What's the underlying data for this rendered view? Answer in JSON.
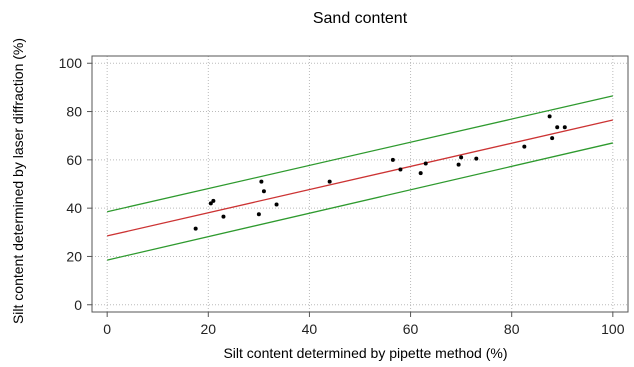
{
  "chart_data": {
    "type": "scatter",
    "title": "Sand content",
    "xlabel": "Silt content determined by pipette method (%)",
    "ylabel": "Silt content determined by laser diffraction (%)",
    "xlim": [
      -3,
      103
    ],
    "ylim": [
      -3,
      103
    ],
    "x_ticks": [
      0,
      20,
      40,
      60,
      80,
      100
    ],
    "y_ticks": [
      0,
      20,
      40,
      60,
      80,
      100
    ],
    "grid": true,
    "points": [
      {
        "x": 17.5,
        "y": 31.5
      },
      {
        "x": 20.5,
        "y": 42.0
      },
      {
        "x": 21.0,
        "y": 43.0
      },
      {
        "x": 23.0,
        "y": 36.5
      },
      {
        "x": 30.0,
        "y": 37.5
      },
      {
        "x": 30.5,
        "y": 51.0
      },
      {
        "x": 31.0,
        "y": 47.0
      },
      {
        "x": 33.5,
        "y": 41.5
      },
      {
        "x": 44.0,
        "y": 51.0
      },
      {
        "x": 56.5,
        "y": 60.0
      },
      {
        "x": 58.0,
        "y": 56.0
      },
      {
        "x": 62.0,
        "y": 54.5
      },
      {
        "x": 63.0,
        "y": 58.5
      },
      {
        "x": 69.5,
        "y": 58.0
      },
      {
        "x": 70.0,
        "y": 61.0
      },
      {
        "x": 73.0,
        "y": 60.5
      },
      {
        "x": 82.5,
        "y": 65.5
      },
      {
        "x": 87.5,
        "y": 78.0
      },
      {
        "x": 88.0,
        "y": 69.0
      },
      {
        "x": 89.0,
        "y": 73.5
      },
      {
        "x": 90.5,
        "y": 73.5
      }
    ],
    "lines": [
      {
        "role": "regression",
        "color": "#cc3333",
        "x": [
          0,
          100
        ],
        "y": [
          28.5,
          76.5
        ]
      },
      {
        "role": "upper-band",
        "color": "#2e9a2e",
        "x": [
          0,
          100
        ],
        "y": [
          38.5,
          86.5
        ]
      },
      {
        "role": "lower-band",
        "color": "#2e9a2e",
        "x": [
          0,
          100
        ],
        "y": [
          18.5,
          67.0
        ]
      }
    ]
  }
}
